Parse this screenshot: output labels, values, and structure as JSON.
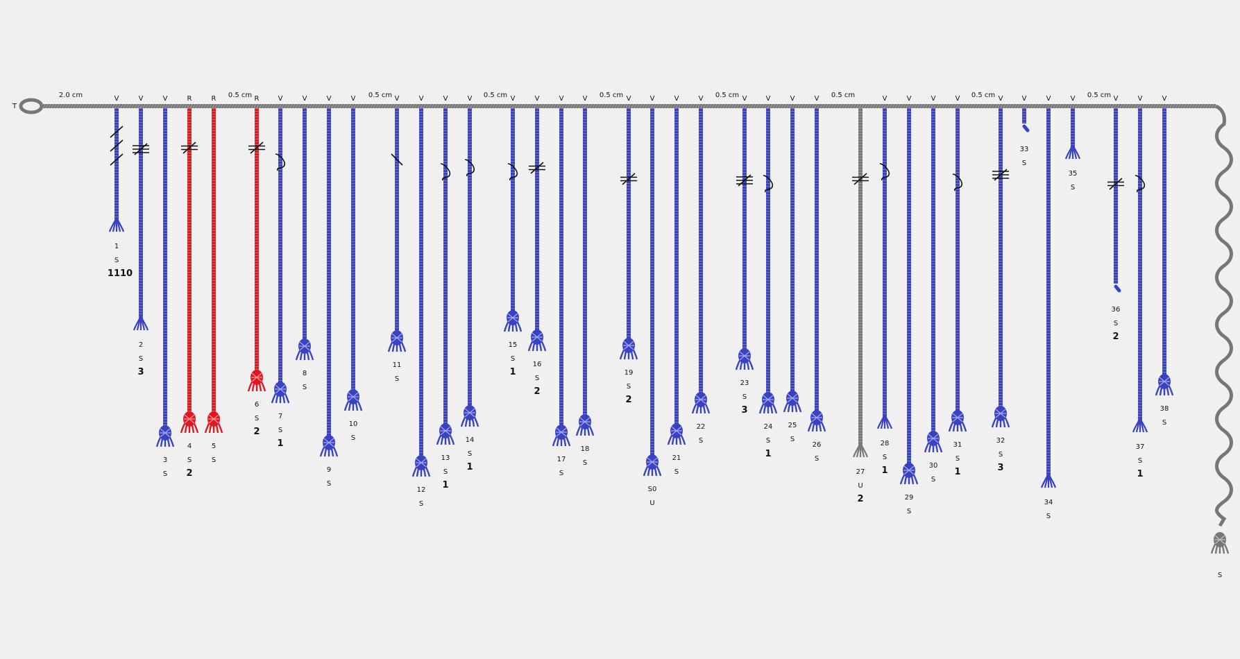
{
  "colors": {
    "background": "#f0f0f0",
    "blue": "#3a42c4",
    "red": "#e01822",
    "gray": "#777777",
    "knot": "#111111",
    "text": "#111111"
  },
  "top_cord": {
    "start_label": "T",
    "spacing_labels": [
      "2.0 cm",
      "0.5 cm",
      "0.5 cm",
      "0.5 cm",
      "0.5 cm",
      "0.5 cm",
      "0.5 cm",
      "0.5 cm",
      "0.5 cm"
    ]
  },
  "cords": [
    {
      "id": "1",
      "top": "V",
      "color": "blue",
      "knot": "ends",
      "knot_marks": "single-3",
      "ply": "S",
      "value": "1110"
    },
    {
      "id": "2",
      "top": "V",
      "color": "blue",
      "knot": "ends",
      "knot_marks": "triple",
      "ply": "S",
      "value": "3"
    },
    {
      "id": "3",
      "top": "V",
      "color": "blue",
      "knot": "tuft",
      "knot_marks": "",
      "ply": "S",
      "value": ""
    },
    {
      "id": "4",
      "top": "R",
      "color": "red",
      "knot": "tuft",
      "knot_marks": "double",
      "ply": "S",
      "value": "2"
    },
    {
      "id": "5",
      "top": "R",
      "color": "red",
      "knot": "tuft",
      "knot_marks": "",
      "ply": "S",
      "value": ""
    },
    {
      "id": "6",
      "top": "R",
      "color": "red",
      "knot": "tuft",
      "knot_marks": "double",
      "ply": "S",
      "value": "2"
    },
    {
      "id": "7",
      "top": "V",
      "color": "blue",
      "knot": "tuft",
      "knot_marks": "long",
      "ply": "S",
      "value": "1"
    },
    {
      "id": "8",
      "top": "V",
      "color": "blue",
      "knot": "tuft",
      "knot_marks": "",
      "ply": "S",
      "value": ""
    },
    {
      "id": "9",
      "top": "V",
      "color": "blue",
      "knot": "tuft",
      "knot_marks": "",
      "ply": "S",
      "value": ""
    },
    {
      "id": "10",
      "top": "V",
      "color": "blue",
      "knot": "tuft",
      "knot_marks": "",
      "ply": "S",
      "value": ""
    },
    {
      "id": "11",
      "top": "V",
      "color": "blue",
      "knot": "tuft",
      "knot_marks": "slash",
      "ply": "S",
      "value": ""
    },
    {
      "id": "12",
      "top": "V",
      "color": "blue",
      "knot": "tuft",
      "knot_marks": "",
      "ply": "S",
      "value": ""
    },
    {
      "id": "13",
      "top": "V",
      "color": "blue",
      "knot": "tuft",
      "knot_marks": "long",
      "ply": "S",
      "value": "1"
    },
    {
      "id": "14",
      "top": "V",
      "color": "blue",
      "knot": "tuft",
      "knot_marks": "long",
      "ply": "S",
      "value": "1"
    },
    {
      "id": "15",
      "top": "V",
      "color": "blue",
      "knot": "tuft",
      "knot_marks": "long",
      "ply": "S",
      "value": "1"
    },
    {
      "id": "16",
      "top": "V",
      "color": "blue",
      "knot": "tuft",
      "knot_marks": "double",
      "ply": "S",
      "value": "2"
    },
    {
      "id": "17",
      "top": "V",
      "color": "blue",
      "knot": "tuft",
      "knot_marks": "",
      "ply": "S",
      "value": ""
    },
    {
      "id": "18",
      "top": "V",
      "color": "blue",
      "knot": "tuft",
      "knot_marks": "",
      "ply": "S",
      "value": ""
    },
    {
      "id": "19",
      "top": "V",
      "color": "blue",
      "knot": "tuft",
      "knot_marks": "double",
      "ply": "S",
      "value": "2"
    },
    {
      "id": "S0",
      "top": "V",
      "color": "blue",
      "knot": "tuft",
      "knot_marks": "",
      "ply": "U",
      "value": ""
    },
    {
      "id": "21",
      "top": "V",
      "color": "blue",
      "knot": "tuft",
      "knot_marks": "",
      "ply": "S",
      "value": ""
    },
    {
      "id": "22",
      "top": "V",
      "color": "blue",
      "knot": "tuft",
      "knot_marks": "",
      "ply": "S",
      "value": ""
    },
    {
      "id": "23",
      "top": "V",
      "color": "blue",
      "knot": "tuft",
      "knot_marks": "triple",
      "ply": "S",
      "value": "3"
    },
    {
      "id": "24",
      "top": "V",
      "color": "blue",
      "knot": "tuft",
      "knot_marks": "long",
      "ply": "S",
      "value": "1"
    },
    {
      "id": "25",
      "top": "V",
      "color": "blue",
      "knot": "tuft",
      "knot_marks": "",
      "ply": "S",
      "value": ""
    },
    {
      "id": "26",
      "top": "V",
      "color": "blue",
      "knot": "tuft",
      "knot_marks": "",
      "ply": "S",
      "value": ""
    },
    {
      "id": "27",
      "top": "",
      "color": "gray",
      "knot": "ends",
      "knot_marks": "double",
      "ply": "U",
      "value": "2"
    },
    {
      "id": "28",
      "top": "V",
      "color": "blue",
      "knot": "ends",
      "knot_marks": "long",
      "ply": "S",
      "value": "1"
    },
    {
      "id": "29",
      "top": "V",
      "color": "blue",
      "knot": "tuft",
      "knot_marks": "",
      "ply": "S",
      "value": ""
    },
    {
      "id": "30",
      "top": "V",
      "color": "blue",
      "knot": "tuft",
      "knot_marks": "",
      "ply": "S",
      "value": ""
    },
    {
      "id": "31",
      "top": "V",
      "color": "blue",
      "knot": "tuft",
      "knot_marks": "long",
      "ply": "S",
      "value": "1"
    },
    {
      "id": "32",
      "top": "V",
      "color": "blue",
      "knot": "tuft",
      "knot_marks": "triple",
      "ply": "S",
      "value": "3"
    },
    {
      "id": "33",
      "top": "V",
      "color": "blue",
      "knot": "stub",
      "knot_marks": "",
      "ply": "S",
      "value": ""
    },
    {
      "id": "34",
      "top": "V",
      "color": "blue",
      "knot": "ends",
      "knot_marks": "",
      "ply": "S",
      "value": ""
    },
    {
      "id": "35",
      "top": "V",
      "color": "blue",
      "knot": "ends",
      "knot_marks": "",
      "ply": "S",
      "value": ""
    },
    {
      "id": "36",
      "top": "V",
      "color": "blue",
      "knot": "stub",
      "knot_marks": "double",
      "ply": "S",
      "value": "2"
    },
    {
      "id": "37",
      "top": "V",
      "color": "blue",
      "knot": "ends",
      "knot_marks": "long",
      "ply": "S",
      "value": "1"
    },
    {
      "id": "38",
      "top": "V",
      "color": "blue",
      "knot": "tuft",
      "knot_marks": "",
      "ply": "S",
      "value": ""
    }
  ],
  "end_cord": {
    "color": "gray",
    "knot": "tuft",
    "ply": "S"
  }
}
